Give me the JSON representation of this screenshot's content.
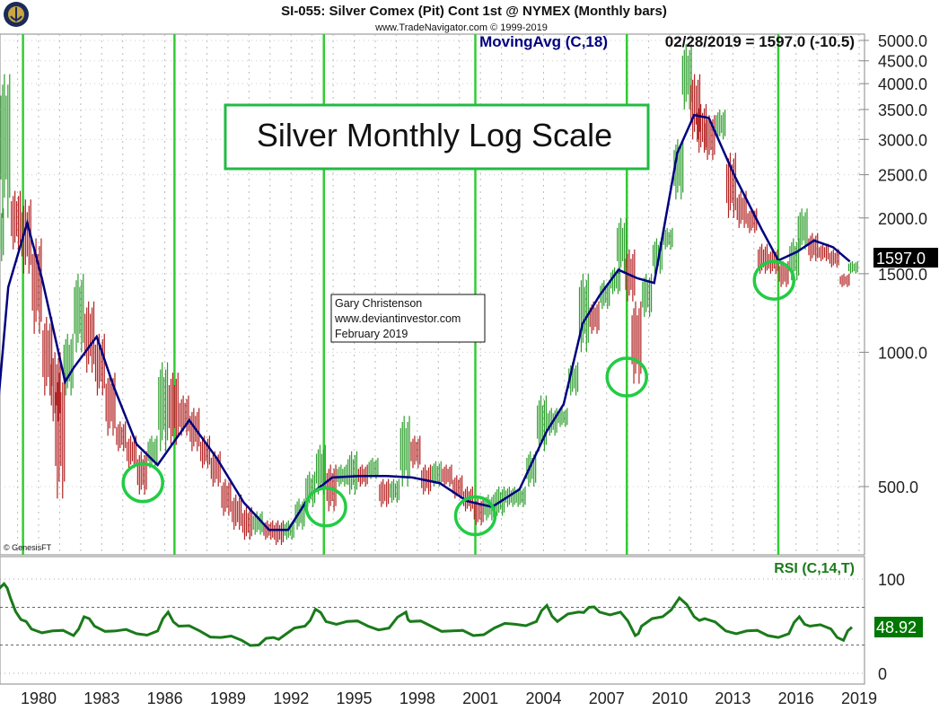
{
  "header": {
    "title": "SI-055:  Silver Comex (Pit) Cont 1st @ NYMEX  (Monthly bars)",
    "subtitle": "www.TradeNavigator.com © 1999-2019",
    "ma_label": "MovingAvg (C,18)",
    "last_value_label": "02/28/2019 = 1597.0 (-10.5)",
    "copyright": "© GenesisFT"
  },
  "annotations": {
    "big_title": "Silver Monthly Log Scale",
    "author_lines": [
      "Gary Christenson",
      "www.deviantinvestor.com",
      "February 2019"
    ]
  },
  "colors": {
    "price_up": "#2e9e2e",
    "price_down": "#b22222",
    "moving_avg": "#000080",
    "rsi": "#1a7a1a",
    "cycle_lines": "#33cc33",
    "circles": "#22cc44",
    "last_price_badge": "#000000",
    "rsi_badge": "#007700"
  },
  "chart_data": [
    {
      "type": "bar",
      "name": "price",
      "scale": "log",
      "ylim": [
        380,
        5200
      ],
      "xlim": [
        1978.2,
        2019.4
      ],
      "y_ticks": [
        500,
        1000,
        1500,
        2000,
        2500,
        3000,
        3500,
        4000,
        4500,
        5000
      ],
      "y_tick_labels": [
        "500.0",
        "1000.0",
        "1500.0",
        "2000.0",
        "2500.0",
        "3000.0",
        "3500.0",
        "4000.0",
        "4500.0",
        "5000.0"
      ],
      "x_ticks": [
        1980,
        1983,
        1986,
        1989,
        1992,
        1995,
        1998,
        2001,
        2004,
        2007,
        2010,
        2013,
        2016,
        2019
      ],
      "x_tick_labels": [
        "1980",
        "1983",
        "1986",
        "1989",
        "1992",
        "1995",
        "1998",
        "2001",
        "2004",
        "2007",
        "2010",
        "2013",
        "2016",
        "2019"
      ],
      "last_price_label": "1597.0",
      "grid": true,
      "bars_year_high_low": [
        [
          1978.2,
          700,
          620
        ],
        [
          1978.5,
          2100,
          1600
        ],
        [
          1978.8,
          4200,
          2000
        ],
        [
          1979.3,
          2300,
          1700
        ],
        [
          1979.8,
          2200,
          1500
        ],
        [
          1980.3,
          1800,
          1100
        ],
        [
          1980.8,
          1200,
          800
        ],
        [
          1981.2,
          1000,
          700
        ],
        [
          1981.4,
          900,
          470
        ],
        [
          1981.8,
          1100,
          800
        ],
        [
          1982.3,
          1500,
          1000
        ],
        [
          1982.8,
          1300,
          900
        ],
        [
          1983.3,
          1100,
          800
        ],
        [
          1983.8,
          900,
          650
        ],
        [
          1984.3,
          700,
          600
        ],
        [
          1984.8,
          650,
          550
        ],
        [
          1985.3,
          600,
          480
        ],
        [
          1985.8,
          650,
          550
        ],
        [
          1986.3,
          950,
          600
        ],
        [
          1986.8,
          900,
          620
        ],
        [
          1987.3,
          800,
          650
        ],
        [
          1987.8,
          750,
          600
        ],
        [
          1988.3,
          650,
          550
        ],
        [
          1988.8,
          600,
          500
        ],
        [
          1989.3,
          520,
          430
        ],
        [
          1989.8,
          480,
          400
        ],
        [
          1990.3,
          450,
          380
        ],
        [
          1990.8,
          440,
          390
        ],
        [
          1991.3,
          420,
          380
        ],
        [
          1991.8,
          420,
          370
        ],
        [
          1992.3,
          420,
          380
        ],
        [
          1992.8,
          470,
          400
        ],
        [
          1993.3,
          540,
          450
        ],
        [
          1993.8,
          620,
          480
        ],
        [
          1994.3,
          560,
          440
        ],
        [
          1994.8,
          560,
          500
        ],
        [
          1995.3,
          600,
          480
        ],
        [
          1995.8,
          560,
          500
        ],
        [
          1996.3,
          580,
          520
        ],
        [
          1996.8,
          520,
          450
        ],
        [
          1997.3,
          520,
          460
        ],
        [
          1997.8,
          720,
          500
        ],
        [
          1998.3,
          650,
          550
        ],
        [
          1998.8,
          560,
          480
        ],
        [
          1999.3,
          570,
          500
        ],
        [
          1999.8,
          560,
          500
        ],
        [
          2000.3,
          530,
          470
        ],
        [
          2000.8,
          500,
          440
        ],
        [
          2001.3,
          470,
          410
        ],
        [
          2001.8,
          480,
          420
        ],
        [
          2002.3,
          500,
          430
        ],
        [
          2002.8,
          500,
          450
        ],
        [
          2003.3,
          500,
          450
        ],
        [
          2003.8,
          600,
          500
        ],
        [
          2004.3,
          800,
          600
        ],
        [
          2004.8,
          750,
          650
        ],
        [
          2005.3,
          750,
          680
        ],
        [
          2005.8,
          950,
          800
        ],
        [
          2006.3,
          1500,
          1000
        ],
        [
          2006.8,
          1300,
          1100
        ],
        [
          2007.3,
          1450,
          1250
        ],
        [
          2007.8,
          1550,
          1350
        ],
        [
          2008.1,
          2000,
          1500
        ],
        [
          2008.5,
          1700,
          1300
        ],
        [
          2008.8,
          1300,
          850
        ],
        [
          2009.3,
          1500,
          1200
        ],
        [
          2009.8,
          1800,
          1500
        ],
        [
          2010.3,
          1900,
          1700
        ],
        [
          2010.8,
          3000,
          2200
        ],
        [
          2011.2,
          4900,
          3500
        ],
        [
          2011.6,
          4200,
          3000
        ],
        [
          2011.9,
          3600,
          2800
        ],
        [
          2012.3,
          3400,
          2700
        ],
        [
          2012.8,
          3500,
          3000
        ],
        [
          2013.3,
          2800,
          2000
        ],
        [
          2013.8,
          2300,
          1900
        ],
        [
          2014.3,
          2100,
          1850
        ],
        [
          2014.8,
          1750,
          1500
        ],
        [
          2015.3,
          1700,
          1500
        ],
        [
          2015.8,
          1600,
          1400
        ],
        [
          2016.3,
          1800,
          1450
        ],
        [
          2016.7,
          2100,
          1700
        ],
        [
          2017.2,
          1850,
          1600
        ],
        [
          2017.7,
          1750,
          1600
        ],
        [
          2018.2,
          1700,
          1550
        ],
        [
          2018.7,
          1500,
          1400
        ],
        [
          2019.1,
          1600,
          1500
        ]
      ],
      "moving_average": [
        [
          1978.3,
          661
        ],
        [
          1978.9,
          1400
        ],
        [
          1979.8,
          1950
        ],
        [
          1980.5,
          1465
        ],
        [
          1981.6,
          859
        ],
        [
          1982.0,
          922
        ],
        [
          1983.1,
          1084
        ],
        [
          1983.9,
          840
        ],
        [
          1985.0,
          622
        ],
        [
          1986.0,
          559
        ],
        [
          1987.5,
          704
        ],
        [
          1988.8,
          580
        ],
        [
          1990.1,
          460
        ],
        [
          1991.3,
          400
        ],
        [
          1992.2,
          400
        ],
        [
          1993.3,
          482
        ],
        [
          1994.3,
          524
        ],
        [
          1995.6,
          528
        ],
        [
          1996.9,
          528
        ],
        [
          1998.1,
          524
        ],
        [
          1999.4,
          509
        ],
        [
          2000.7,
          464
        ],
        [
          2001.9,
          450
        ],
        [
          2003.2,
          493
        ],
        [
          2004.5,
          666
        ],
        [
          2005.3,
          765
        ],
        [
          2006.2,
          1160
        ],
        [
          2007.0,
          1340
        ],
        [
          2007.9,
          1530
        ],
        [
          2008.8,
          1465
        ],
        [
          2009.6,
          1430
        ],
        [
          2010.7,
          2800
        ],
        [
          2011.5,
          3400
        ],
        [
          2012.2,
          3350
        ],
        [
          2013.4,
          2495
        ],
        [
          2014.7,
          1890
        ],
        [
          2015.5,
          1606
        ],
        [
          2016.4,
          1680
        ],
        [
          2017.2,
          1780
        ],
        [
          2018.1,
          1720
        ],
        [
          2018.9,
          1597
        ]
      ],
      "cycle_lines_year": [
        1979.6,
        1986.8,
        1993.9,
        2001.1,
        2008.3,
        2015.5
      ],
      "circled_lows": [
        [
          1985.3,
          510
        ],
        [
          1994.0,
          450
        ],
        [
          2001.1,
          430
        ],
        [
          2008.3,
          880
        ],
        [
          2015.3,
          1450
        ]
      ]
    },
    {
      "type": "line",
      "name": "RSI (C,14,T)",
      "ylim": [
        0,
        100
      ],
      "y_ticks": [
        0,
        100
      ],
      "y_tick_labels": [
        "0",
        "100"
      ],
      "reference_lines": [
        30,
        70
      ],
      "last_value_label": "48.92",
      "values_year_rsi": [
        [
          1978.2,
          90
        ],
        [
          1978.7,
          95
        ],
        [
          1979.0,
          80
        ],
        [
          1979.5,
          57
        ],
        [
          1980.0,
          47
        ],
        [
          1981.0,
          45
        ],
        [
          1982.0,
          40
        ],
        [
          1982.5,
          60
        ],
        [
          1983.0,
          50
        ],
        [
          1984.0,
          45
        ],
        [
          1985.0,
          42
        ],
        [
          1986.0,
          45
        ],
        [
          1986.5,
          65
        ],
        [
          1987.0,
          50
        ],
        [
          1988.0,
          45
        ],
        [
          1989.0,
          38
        ],
        [
          1990.0,
          35
        ],
        [
          1990.8,
          30
        ],
        [
          1991.5,
          38
        ],
        [
          1992.0,
          40
        ],
        [
          1993.0,
          50
        ],
        [
          1993.5,
          68
        ],
        [
          1994.0,
          55
        ],
        [
          1995.0,
          55
        ],
        [
          1996.0,
          50
        ],
        [
          1997.0,
          48
        ],
        [
          1997.8,
          65
        ],
        [
          1998.0,
          55
        ],
        [
          1999.0,
          50
        ],
        [
          2000.0,
          45
        ],
        [
          2001.0,
          40
        ],
        [
          2002.0,
          48
        ],
        [
          2003.0,
          52
        ],
        [
          2004.0,
          55
        ],
        [
          2004.5,
          72
        ],
        [
          2005.0,
          55
        ],
        [
          2006.0,
          65
        ],
        [
          2006.5,
          70
        ],
        [
          2007.0,
          65
        ],
        [
          2008.0,
          65
        ],
        [
          2008.7,
          40
        ],
        [
          2009.0,
          50
        ],
        [
          2010.0,
          60
        ],
        [
          2010.8,
          80
        ],
        [
          2011.5,
          60
        ],
        [
          2012.0,
          58
        ],
        [
          2013.0,
          45
        ],
        [
          2014.0,
          45
        ],
        [
          2015.0,
          40
        ],
        [
          2016.0,
          42
        ],
        [
          2016.5,
          60
        ],
        [
          2017.0,
          50
        ],
        [
          2018.0,
          47
        ],
        [
          2018.6,
          35
        ],
        [
          2019.0,
          48.92
        ]
      ]
    }
  ]
}
